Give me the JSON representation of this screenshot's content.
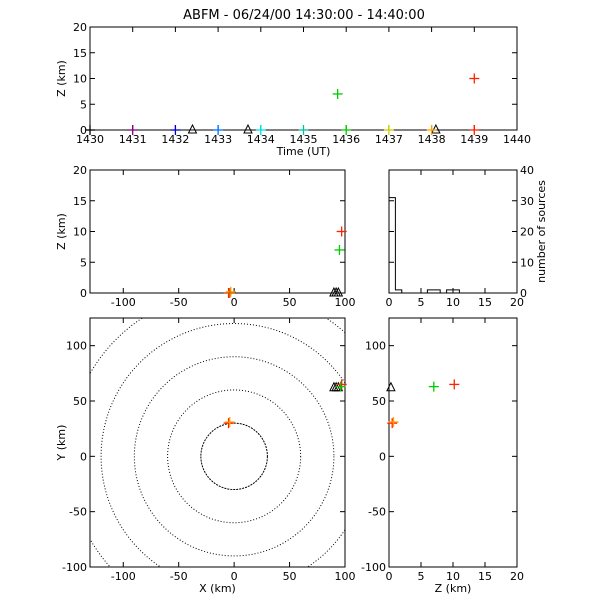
{
  "title": "ABFM - 06/24/00 14:30:00 - 14:40:00",
  "chart_data": [
    {
      "id": "time_z",
      "type": "scatter",
      "xlabel": "Time (UT)",
      "ylabel": "Z (km)",
      "xlim": [
        1430,
        1440
      ],
      "ylim": [
        0,
        20
      ],
      "xticks": [
        1430,
        1431,
        1432,
        1433,
        1434,
        1435,
        1436,
        1437,
        1438,
        1439,
        1440
      ],
      "yticks": [
        0,
        5,
        10,
        15,
        20
      ],
      "points": [
        {
          "x": 1430.0,
          "y": 0.0,
          "color": "#000000"
        },
        {
          "x": 1431.0,
          "y": 0.0,
          "color": "#800080"
        },
        {
          "x": 1432.0,
          "y": 0.0,
          "color": "#0000cc"
        },
        {
          "x": 1433.0,
          "y": 0.0,
          "color": "#0070ff"
        },
        {
          "x": 1434.0,
          "y": 0.0,
          "color": "#00e0e0"
        },
        {
          "x": 1435.0,
          "y": 0.0,
          "color": "#00c0a0"
        },
        {
          "x": 1435.8,
          "y": 7.0,
          "color": "#00cc00"
        },
        {
          "x": 1436.0,
          "y": 0.0,
          "color": "#00cc00"
        },
        {
          "x": 1437.0,
          "y": 0.0,
          "color": "#cccc00"
        },
        {
          "x": 1438.0,
          "y": 0.0,
          "color": "#ffa000"
        },
        {
          "x": 1439.0,
          "y": 0.0,
          "color": "#ff2000"
        },
        {
          "x": 1439.0,
          "y": 10.0,
          "color": "#ff2000"
        }
      ],
      "triangles": [
        {
          "x": 1432.4,
          "y": 0.0
        },
        {
          "x": 1433.7,
          "y": 0.0
        },
        {
          "x": 1438.1,
          "y": 0.0
        }
      ]
    },
    {
      "id": "x_z",
      "type": "scatter",
      "xlabel": "",
      "ylabel": "Z (km)",
      "xlim": [
        -130,
        100
      ],
      "ylim": [
        0,
        20
      ],
      "xticks": [
        -100,
        -50,
        0,
        50,
        100
      ],
      "yticks": [
        0,
        5,
        10,
        15,
        20
      ],
      "points": [
        {
          "x": -5,
          "y": 0.0,
          "color": "#ff2000"
        },
        {
          "x": -3,
          "y": 0.2,
          "color": "#ffa000"
        },
        {
          "x": -4,
          "y": 0.0,
          "color": "#cc6600"
        },
        {
          "x": 97,
          "y": 10.0,
          "color": "#ff2000"
        },
        {
          "x": 95,
          "y": 7.0,
          "color": "#00cc00"
        }
      ],
      "triangles": [
        {
          "x": 90,
          "y": 0.0
        },
        {
          "x": 92,
          "y": 0.0
        },
        {
          "x": 94,
          "y": 0.0
        }
      ]
    },
    {
      "id": "z_hist",
      "type": "bar",
      "ylabel": "number of sources",
      "xlim": [
        0,
        20
      ],
      "ylim": [
        0,
        40
      ],
      "xticks": [
        0,
        5,
        10,
        15,
        20
      ],
      "yticks": [
        0,
        10,
        20,
        30,
        40
      ],
      "bin_width": 1,
      "bin_edges": [
        0,
        1,
        2,
        3,
        4,
        5,
        6,
        7,
        8,
        9,
        10,
        11,
        12,
        13,
        14,
        15,
        16,
        17,
        18,
        19
      ],
      "values": [
        31,
        1,
        0,
        0,
        0,
        0,
        1,
        1,
        0,
        1,
        1,
        0,
        0,
        0,
        0,
        0,
        0,
        0,
        0,
        0
      ]
    },
    {
      "id": "x_y",
      "type": "scatter",
      "xlabel": "X (km)",
      "ylabel": "Y (km)",
      "xlim": [
        -130,
        100
      ],
      "ylim": [
        -100,
        125
      ],
      "xticks": [
        -100,
        -50,
        0,
        50,
        100
      ],
      "yticks": [
        -100,
        -50,
        0,
        50,
        100
      ],
      "range_rings": [
        30,
        60,
        90,
        120,
        150
      ],
      "points": [
        {
          "x": -5,
          "y": 30,
          "color": "#ff2000"
        },
        {
          "x": -4,
          "y": 31,
          "color": "#ffa000"
        },
        {
          "x": 97,
          "y": 65,
          "color": "#ff2000"
        },
        {
          "x": 96,
          "y": 63,
          "color": "#00cc00"
        }
      ],
      "triangles": [
        {
          "x": 90,
          "y": 62
        },
        {
          "x": 92,
          "y": 62
        },
        {
          "x": 94,
          "y": 62
        }
      ]
    },
    {
      "id": "z_y",
      "type": "scatter",
      "xlabel": "Z (km)",
      "ylabel": "",
      "xlim": [
        0,
        20
      ],
      "ylim": [
        -100,
        125
      ],
      "xticks": [
        0,
        5,
        10,
        15,
        20
      ],
      "yticks": [
        -100,
        -50,
        0,
        50,
        100
      ],
      "points": [
        {
          "x": 0.5,
          "y": 30,
          "color": "#ff2000"
        },
        {
          "x": 0.7,
          "y": 31,
          "color": "#ffa000"
        },
        {
          "x": 7.0,
          "y": 63,
          "color": "#00cc00"
        },
        {
          "x": 10.2,
          "y": 65,
          "color": "#ff2000"
        }
      ],
      "triangles": [
        {
          "x": 0.3,
          "y": 62
        }
      ]
    }
  ]
}
